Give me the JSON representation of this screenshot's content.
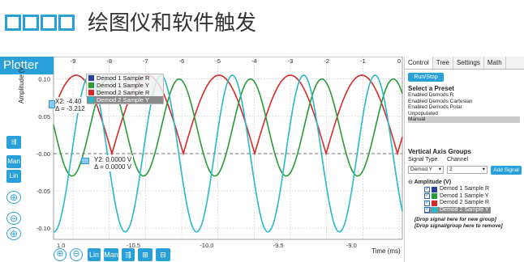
{
  "header": {
    "title": "绘图仪和软件触发",
    "tab": "Plotter"
  },
  "legend": {
    "items": [
      {
        "label": "Demod 1 Sample R",
        "color": "#2a3f9e"
      },
      {
        "label": "Demod 1 Sample Y",
        "color": "#2a9a3a"
      },
      {
        "label": "Demod 2 Sample R",
        "color": "#d62a2a"
      },
      {
        "label": "Demod 2 Sample Y",
        "color": "#2ab8c8"
      }
    ]
  },
  "cursor_x": {
    "line1": "X2: -4.40",
    "line2": "Δ = -3.212"
  },
  "cursor_y": {
    "line1": "Y2: 0.0000 V",
    "line2": "Δ = 0.0000 V"
  },
  "chart_data": {
    "type": "line",
    "ylabel": "Amplitude (V",
    "xlabel": "Time (ms)",
    "top_ticks": [
      "-9",
      "-8",
      "-7",
      "-6",
      "-5",
      "-4",
      "-3",
      "-2",
      "-1",
      "0"
    ],
    "bottom_ticks": [
      "1.0",
      "-10.5",
      "-10.0",
      "-9.5",
      "-9.0"
    ],
    "y_ticks": [
      "0.10",
      "0.05",
      "-0.00",
      "-0.05",
      "-0.10"
    ],
    "ylim": [
      -0.115,
      0.13
    ],
    "series": [
      {
        "name": "Demod 2 Sample R",
        "color": "#d62a2a",
        "amplitude": 0.105,
        "offset": 0.0,
        "kind": "abs"
      },
      {
        "name": "Demod 1 Sample Y",
        "color": "#2a9a3a",
        "amplitude": 0.065,
        "offset": 0.035,
        "kind": "sine"
      },
      {
        "name": "Demod 2 Sample Y",
        "color": "#2ab8c8",
        "amplitude": 0.105,
        "offset": 0.0,
        "kind": "sine"
      }
    ]
  },
  "left_tools": [
    "Man",
    "Lin"
  ],
  "bottom_tools": [
    "Lin",
    "Man"
  ],
  "panel": {
    "tabs": [
      "Control",
      "Tree",
      "Settings",
      "Math"
    ],
    "run_stop": "Run/Stop",
    "preset_title": "Select a Preset",
    "presets": [
      "Enabled Demods R",
      "Enabled Demods Cartesian",
      "Enabled Demods Polar",
      "Unpopulated",
      "Manual"
    ],
    "vag_title": "Vertical Axis Groups",
    "signal_type_label": "Signal Type",
    "channel_label": "Channel",
    "signal_type_value": "Demod Y",
    "channel_value": "2",
    "add_signal": "Add Signal",
    "group_label": "Amplitude (V)",
    "tree": [
      {
        "label": "Demod 1 Sample R",
        "color": "#2a3f9e"
      },
      {
        "label": "Demod 1 Sample Y",
        "color": "#2a9a3a"
      },
      {
        "label": "Demod 2 Sample R",
        "color": "#d62a2a"
      },
      {
        "label": "Demod 2 Sample Y",
        "color": "#2ab8c8"
      }
    ],
    "drop_new": "[Drop signal here for new group]",
    "drop_remove": "[Drop signal/group here to remove]"
  }
}
